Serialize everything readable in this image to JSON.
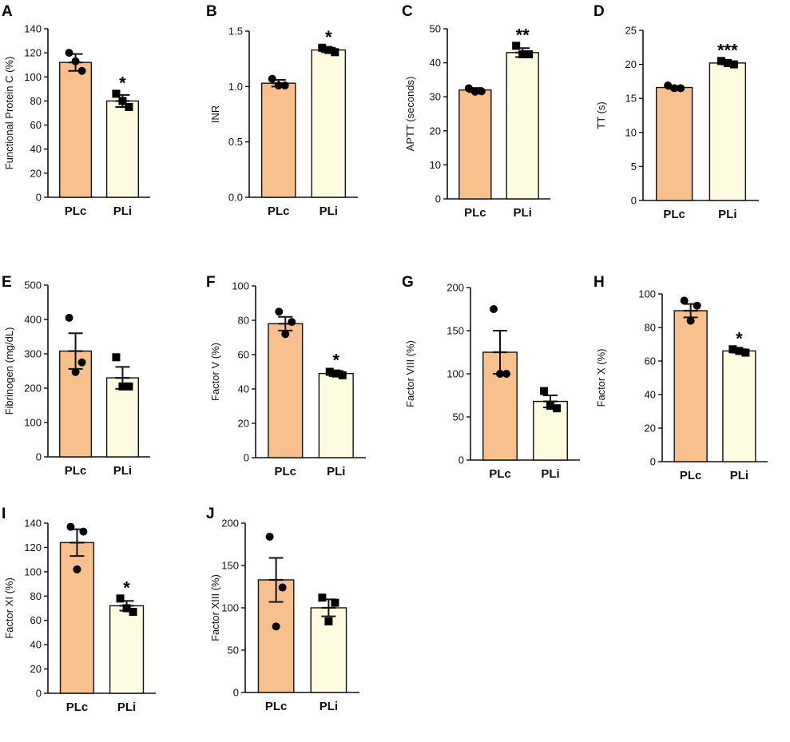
{
  "colors": {
    "PLc": "#f8c08c",
    "PLi": "#fdfce1",
    "outline": "#111111"
  },
  "chart_data": [
    {
      "type": "bar",
      "panel": "A",
      "ylabel": "Functional Protein C (%)",
      "categories": [
        "PLc",
        "PLi"
      ],
      "ylim": [
        0,
        140
      ],
      "yticks": [
        "0",
        "20",
        "40",
        "60",
        "80",
        "100",
        "120",
        "140"
      ],
      "values": [
        112,
        80
      ],
      "sem": [
        7,
        5
      ],
      "points": [
        [
          120,
          105,
          113
        ],
        [
          86,
          75,
          80
        ]
      ],
      "markers": [
        "circle",
        "square"
      ],
      "significance": "*"
    },
    {
      "type": "bar",
      "panel": "B",
      "ylabel": "INR",
      "categories": [
        "PLc",
        "PLi"
      ],
      "ylim": [
        0,
        1.5
      ],
      "yticks": [
        "0.0",
        "0.5",
        "1.0",
        "1.5"
      ],
      "values": [
        1.03,
        1.33
      ],
      "sem": [
        0.03,
        0.02
      ],
      "points": [
        [
          1.07,
          1.01,
          1.01
        ],
        [
          1.35,
          1.31,
          1.33
        ]
      ],
      "markers": [
        "circle",
        "square"
      ],
      "significance": "*"
    },
    {
      "type": "bar",
      "panel": "C",
      "ylabel": "APTT (seconds)",
      "categories": [
        "PLc",
        "PLi"
      ],
      "ylim": [
        0,
        50
      ],
      "yticks": [
        "0",
        "10",
        "20",
        "30",
        "40",
        "50"
      ],
      "values": [
        32,
        43
      ],
      "sem": [
        0.6,
        1.3
      ],
      "points": [
        [
          32.5,
          31.6,
          31.5
        ],
        [
          45,
          42.5,
          42.5
        ]
      ],
      "markers": [
        "circle",
        "square"
      ],
      "significance": "**"
    },
    {
      "type": "bar",
      "panel": "D",
      "ylabel": "TT (s)",
      "categories": [
        "PLc",
        "PLi"
      ],
      "ylim": [
        0,
        25
      ],
      "yticks": [
        "0",
        "5",
        "10",
        "15",
        "20",
        "25"
      ],
      "values": [
        16.6,
        20.2
      ],
      "sem": [
        0.2,
        0.2
      ],
      "points": [
        [
          16.9,
          16.5,
          16.5
        ],
        [
          20.5,
          20.0,
          20.2
        ]
      ],
      "markers": [
        "circle",
        "square"
      ],
      "significance": "***"
    },
    {
      "type": "bar",
      "panel": "E",
      "ylabel": "Fibrinogen (mg/dL)",
      "categories": [
        "PLc",
        "PLi"
      ],
      "ylim": [
        0,
        500
      ],
      "yticks": [
        "0",
        "100",
        "200",
        "300",
        "400",
        "500"
      ],
      "values": [
        308,
        230
      ],
      "sem": [
        52,
        32
      ],
      "points": [
        [
          405,
          275,
          247
        ],
        [
          290,
          205,
          205
        ]
      ],
      "markers": [
        "circle",
        "square"
      ],
      "significance": ""
    },
    {
      "type": "bar",
      "panel": "F",
      "ylabel": "Factor V (%)",
      "categories": [
        "PLc",
        "PLi"
      ],
      "ylim": [
        0,
        100
      ],
      "yticks": [
        "0",
        "20",
        "40",
        "60",
        "80",
        "100"
      ],
      "values": [
        78,
        49
      ],
      "sem": [
        4,
        1.5
      ],
      "points": [
        [
          85,
          79,
          72
        ],
        [
          50,
          48,
          49
        ]
      ],
      "markers": [
        "circle",
        "square"
      ],
      "significance": "*"
    },
    {
      "type": "bar",
      "panel": "G",
      "ylabel": "Factor VIII (%)",
      "categories": [
        "PLc",
        "PLi"
      ],
      "ylim": [
        0,
        200
      ],
      "yticks": [
        "0",
        "50",
        "100",
        "150",
        "200"
      ],
      "values": [
        125,
        68
      ],
      "sem": [
        25,
        7
      ],
      "points": [
        [
          175,
          100,
          100
        ],
        [
          80,
          60,
          63
        ]
      ],
      "markers": [
        "circle",
        "square"
      ],
      "significance": ""
    },
    {
      "type": "bar",
      "panel": "H",
      "ylabel": "Factor X (%)",
      "categories": [
        "PLc",
        "PLi"
      ],
      "ylim": [
        0,
        100
      ],
      "yticks": [
        "0",
        "20",
        "40",
        "60",
        "80",
        "100"
      ],
      "values": [
        90,
        66
      ],
      "sem": [
        4,
        1
      ],
      "points": [
        [
          96,
          93,
          84
        ],
        [
          67,
          65,
          66
        ]
      ],
      "markers": [
        "circle",
        "square"
      ],
      "significance": "*"
    },
    {
      "type": "bar",
      "panel": "I",
      "ylabel": "Factor XI (%)",
      "categories": [
        "PLc",
        "PLi"
      ],
      "ylim": [
        0,
        140
      ],
      "yticks": [
        "0",
        "20",
        "40",
        "60",
        "80",
        "100",
        "120",
        "140"
      ],
      "values": [
        124,
        72
      ],
      "sem": [
        11,
        4
      ],
      "points": [
        [
          137,
          133,
          102
        ],
        [
          78,
          67,
          70
        ]
      ],
      "markers": [
        "circle",
        "square"
      ],
      "significance": "*"
    },
    {
      "type": "bar",
      "panel": "J",
      "ylabel": "Factor XIII (%)",
      "categories": [
        "PLc",
        "PLi"
      ],
      "ylim": [
        0,
        200
      ],
      "yticks": [
        "0",
        "50",
        "100",
        "150",
        "200"
      ],
      "values": [
        133,
        100
      ],
      "sem": [
        26,
        10
      ],
      "points": [
        [
          184,
          124,
          78
        ],
        [
          112,
          106,
          84
        ]
      ],
      "markers": [
        "circle",
        "square"
      ],
      "significance": ""
    }
  ]
}
